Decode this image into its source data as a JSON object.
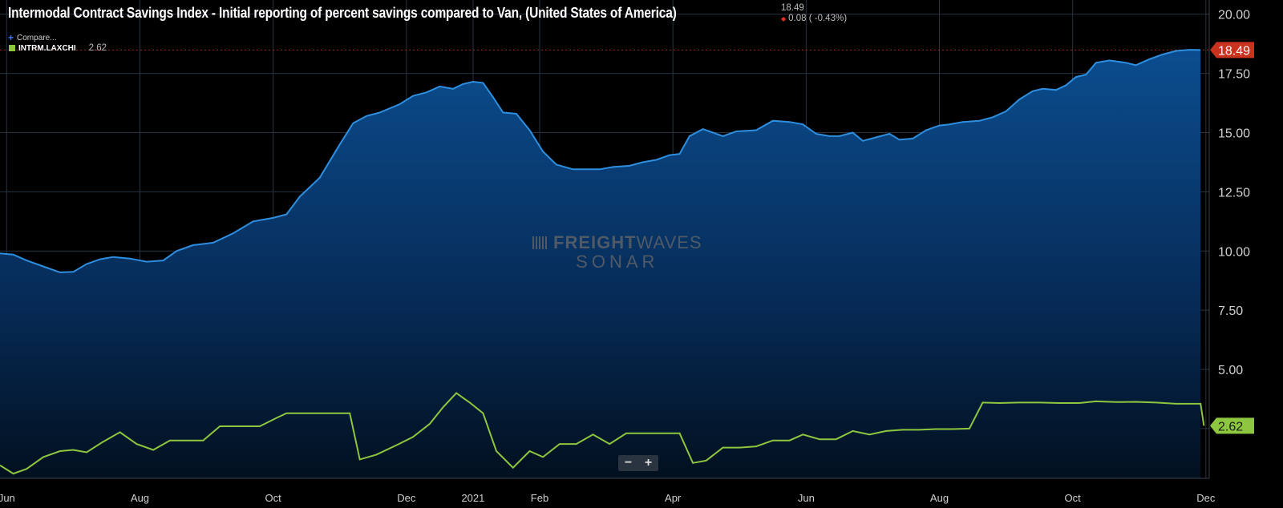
{
  "header": {
    "title": "Intermodal Contract Savings Index - Initial reporting of percent savings compared to Van, (United States of America)",
    "last_value": "18.49",
    "change_text": "0.08 ( -0.43%)"
  },
  "compare_label": "Compare...",
  "legend": {
    "series_name": "INTRM.LAXCHI",
    "series_value": "2.62"
  },
  "badges": {
    "main_last": "18.49",
    "secondary_last": "2.62"
  },
  "watermark": {
    "brand_bold": "FREIGHT",
    "brand_thin": "WAVES",
    "sub": "SONAR"
  },
  "zoom": {
    "minus": "−",
    "plus": "+"
  },
  "colors": {
    "background": "#000000",
    "main_line": "#2e8fe0",
    "main_fill_top": "#0b4d8f",
    "secondary_line": "#8dc63f",
    "last_badge": "#c8321f",
    "grid": "#2a3340"
  },
  "chart_data": {
    "type": "area",
    "y_ticks": [
      "20.00",
      "17.50",
      "15.00",
      "12.50",
      "10.00",
      "7.50",
      "5.00"
    ],
    "ylim": [
      0.4,
      20.6
    ],
    "x_ticks": [
      {
        "label": "Jun",
        "t": 0.0
      },
      {
        "label": "Aug",
        "t": 2.0
      },
      {
        "label": "Oct",
        "t": 4.0
      },
      {
        "label": "Dec",
        "t": 6.0
      },
      {
        "label": "2021",
        "t": 7.0
      },
      {
        "label": "Feb",
        "t": 8.0
      },
      {
        "label": "Apr",
        "t": 10.0
      },
      {
        "label": "Jun",
        "t": 12.0
      },
      {
        "label": "Aug",
        "t": 14.0
      },
      {
        "label": "Oct",
        "t": 16.0
      },
      {
        "label": "Dec",
        "t": 18.0
      }
    ],
    "xlim": [
      -0.1,
      18.05
    ],
    "series": [
      {
        "name": "Intermodal Contract Savings Index",
        "style": "area",
        "points": [
          [
            -0.1,
            9.9
          ],
          [
            0.1,
            9.85
          ],
          [
            0.3,
            9.6
          ],
          [
            0.55,
            9.35
          ],
          [
            0.8,
            9.1
          ],
          [
            1.0,
            9.12
          ],
          [
            1.2,
            9.45
          ],
          [
            1.4,
            9.65
          ],
          [
            1.6,
            9.75
          ],
          [
            1.85,
            9.68
          ],
          [
            2.1,
            9.55
          ],
          [
            2.35,
            9.6
          ],
          [
            2.55,
            10.0
          ],
          [
            2.8,
            10.25
          ],
          [
            3.1,
            10.35
          ],
          [
            3.4,
            10.75
          ],
          [
            3.7,
            11.25
          ],
          [
            4.0,
            11.4
          ],
          [
            4.2,
            11.55
          ],
          [
            4.4,
            12.3
          ],
          [
            4.7,
            13.1
          ],
          [
            5.0,
            14.5
          ],
          [
            5.2,
            15.4
          ],
          [
            5.4,
            15.7
          ],
          [
            5.6,
            15.85
          ],
          [
            5.9,
            16.2
          ],
          [
            6.1,
            16.55
          ],
          [
            6.3,
            16.7
          ],
          [
            6.5,
            16.95
          ],
          [
            6.7,
            16.85
          ],
          [
            6.85,
            17.05
          ],
          [
            7.0,
            17.15
          ],
          [
            7.15,
            17.1
          ],
          [
            7.3,
            16.5
          ],
          [
            7.45,
            15.85
          ],
          [
            7.65,
            15.8
          ],
          [
            7.85,
            15.1
          ],
          [
            8.05,
            14.2
          ],
          [
            8.25,
            13.65
          ],
          [
            8.5,
            13.45
          ],
          [
            8.7,
            13.45
          ],
          [
            8.9,
            13.45
          ],
          [
            9.1,
            13.55
          ],
          [
            9.35,
            13.6
          ],
          [
            9.55,
            13.75
          ],
          [
            9.75,
            13.85
          ],
          [
            9.95,
            14.05
          ],
          [
            10.1,
            14.1
          ],
          [
            10.25,
            14.85
          ],
          [
            10.45,
            15.15
          ],
          [
            10.6,
            15.0
          ],
          [
            10.75,
            14.85
          ],
          [
            10.95,
            15.05
          ],
          [
            11.25,
            15.1
          ],
          [
            11.5,
            15.5
          ],
          [
            11.75,
            15.45
          ],
          [
            11.95,
            15.35
          ],
          [
            12.15,
            14.95
          ],
          [
            12.35,
            14.85
          ],
          [
            12.5,
            14.85
          ],
          [
            12.7,
            15.0
          ],
          [
            12.85,
            14.65
          ],
          [
            13.05,
            14.8
          ],
          [
            13.25,
            14.95
          ],
          [
            13.4,
            14.7
          ],
          [
            13.6,
            14.75
          ],
          [
            13.8,
            15.1
          ],
          [
            14.0,
            15.3
          ],
          [
            14.15,
            15.35
          ],
          [
            14.35,
            15.45
          ],
          [
            14.6,
            15.5
          ],
          [
            14.8,
            15.65
          ],
          [
            15.0,
            15.9
          ],
          [
            15.2,
            16.4
          ],
          [
            15.4,
            16.75
          ],
          [
            15.55,
            16.85
          ],
          [
            15.75,
            16.8
          ],
          [
            15.9,
            17.0
          ],
          [
            16.05,
            17.35
          ],
          [
            16.2,
            17.45
          ],
          [
            16.35,
            17.95
          ],
          [
            16.55,
            18.05
          ],
          [
            16.8,
            17.95
          ],
          [
            16.95,
            17.85
          ],
          [
            17.15,
            18.1
          ],
          [
            17.35,
            18.3
          ],
          [
            17.55,
            18.45
          ],
          [
            17.75,
            18.5
          ],
          [
            17.92,
            18.49
          ]
        ]
      },
      {
        "name": "INTRM.LAXCHI",
        "style": "line",
        "points": [
          [
            -0.1,
            0.95
          ],
          [
            0.1,
            0.6
          ],
          [
            0.3,
            0.8
          ],
          [
            0.55,
            1.3
          ],
          [
            0.8,
            1.55
          ],
          [
            1.0,
            1.6
          ],
          [
            1.2,
            1.5
          ],
          [
            1.45,
            1.95
          ],
          [
            1.7,
            2.35
          ],
          [
            1.95,
            1.85
          ],
          [
            2.2,
            1.6
          ],
          [
            2.45,
            2.0
          ],
          [
            2.7,
            2.0
          ],
          [
            2.95,
            2.0
          ],
          [
            3.2,
            2.6
          ],
          [
            3.5,
            2.6
          ],
          [
            3.8,
            2.6
          ],
          [
            4.05,
            2.95
          ],
          [
            4.2,
            3.15
          ],
          [
            4.5,
            3.15
          ],
          [
            4.8,
            3.15
          ],
          [
            5.15,
            3.15
          ],
          [
            5.3,
            1.2
          ],
          [
            5.55,
            1.4
          ],
          [
            5.85,
            1.8
          ],
          [
            6.1,
            2.15
          ],
          [
            6.35,
            2.7
          ],
          [
            6.55,
            3.4
          ],
          [
            6.75,
            4.0
          ],
          [
            6.95,
            3.6
          ],
          [
            7.15,
            3.15
          ],
          [
            7.35,
            1.55
          ],
          [
            7.6,
            0.85
          ],
          [
            7.85,
            1.55
          ],
          [
            8.05,
            1.3
          ],
          [
            8.3,
            1.85
          ],
          [
            8.55,
            1.85
          ],
          [
            8.8,
            2.25
          ],
          [
            9.05,
            1.85
          ],
          [
            9.3,
            2.3
          ],
          [
            9.6,
            2.3
          ],
          [
            9.9,
            2.3
          ],
          [
            10.1,
            2.3
          ],
          [
            10.3,
            1.05
          ],
          [
            10.5,
            1.15
          ],
          [
            10.75,
            1.7
          ],
          [
            11.0,
            1.7
          ],
          [
            11.25,
            1.75
          ],
          [
            11.5,
            2.0
          ],
          [
            11.75,
            2.0
          ],
          [
            11.95,
            2.25
          ],
          [
            12.2,
            2.05
          ],
          [
            12.45,
            2.05
          ],
          [
            12.7,
            2.4
          ],
          [
            12.95,
            2.25
          ],
          [
            13.2,
            2.4
          ],
          [
            13.45,
            2.45
          ],
          [
            13.7,
            2.45
          ],
          [
            13.95,
            2.48
          ],
          [
            14.2,
            2.48
          ],
          [
            14.45,
            2.5
          ],
          [
            14.65,
            3.6
          ],
          [
            14.9,
            3.58
          ],
          [
            15.2,
            3.6
          ],
          [
            15.5,
            3.6
          ],
          [
            15.8,
            3.58
          ],
          [
            16.1,
            3.58
          ],
          [
            16.35,
            3.65
          ],
          [
            16.65,
            3.62
          ],
          [
            16.95,
            3.63
          ],
          [
            17.25,
            3.6
          ],
          [
            17.55,
            3.55
          ],
          [
            17.8,
            3.55
          ],
          [
            17.92,
            3.55
          ],
          [
            17.97,
            2.62
          ]
        ]
      }
    ],
    "reference_line": 18.49,
    "legend": "top-left",
    "grid": true
  }
}
